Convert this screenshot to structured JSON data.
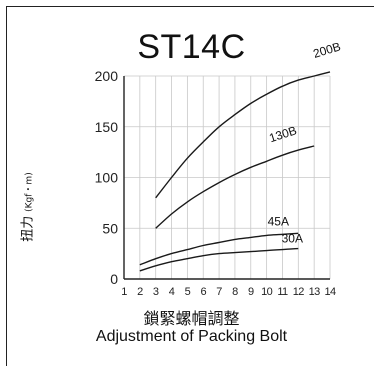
{
  "chart_data": {
    "type": "line",
    "title": "ST14C",
    "ylabel_cjk": "扭力",
    "ylabel_unit": "(Kgf・m)",
    "xlabel_cjk": "鎖緊螺帽調整",
    "xlabel": "Adjustment of Packing Bolt",
    "xticks": [
      "1",
      "2",
      "3",
      "4",
      "5",
      "6",
      "7",
      "8",
      "9",
      "10",
      "11",
      "12",
      "13",
      "14"
    ],
    "yticks": [
      "0",
      "50",
      "100",
      "150",
      "200"
    ],
    "xlim": [
      1,
      14
    ],
    "ylim": [
      0,
      200
    ],
    "grid": true,
    "series": [
      {
        "name": "200B",
        "x": [
          3,
          4,
          5,
          6,
          7,
          8,
          9,
          10,
          11,
          12,
          13,
          14
        ],
        "values": [
          80,
          100,
          119,
          135,
          150,
          162,
          173,
          182,
          190,
          196,
          200,
          204
        ]
      },
      {
        "name": "130B",
        "x": [
          3,
          4,
          5,
          6,
          7,
          8,
          9,
          10,
          11,
          12,
          13
        ],
        "values": [
          50,
          64,
          76,
          86,
          95,
          103,
          110,
          116,
          122,
          127,
          131
        ]
      },
      {
        "name": "45A",
        "x": [
          2,
          3,
          4,
          5,
          6,
          7,
          8,
          9,
          10,
          11,
          12
        ],
        "values": [
          14,
          20,
          25,
          29,
          33,
          36,
          39,
          41,
          43,
          44,
          45
        ]
      },
      {
        "name": "30A",
        "x": [
          2,
          3,
          4,
          5,
          6,
          7,
          8,
          9,
          10,
          11,
          12
        ],
        "values": [
          8,
          13,
          17,
          20,
          23,
          25,
          26,
          27,
          28,
          29,
          30
        ]
      }
    ]
  }
}
